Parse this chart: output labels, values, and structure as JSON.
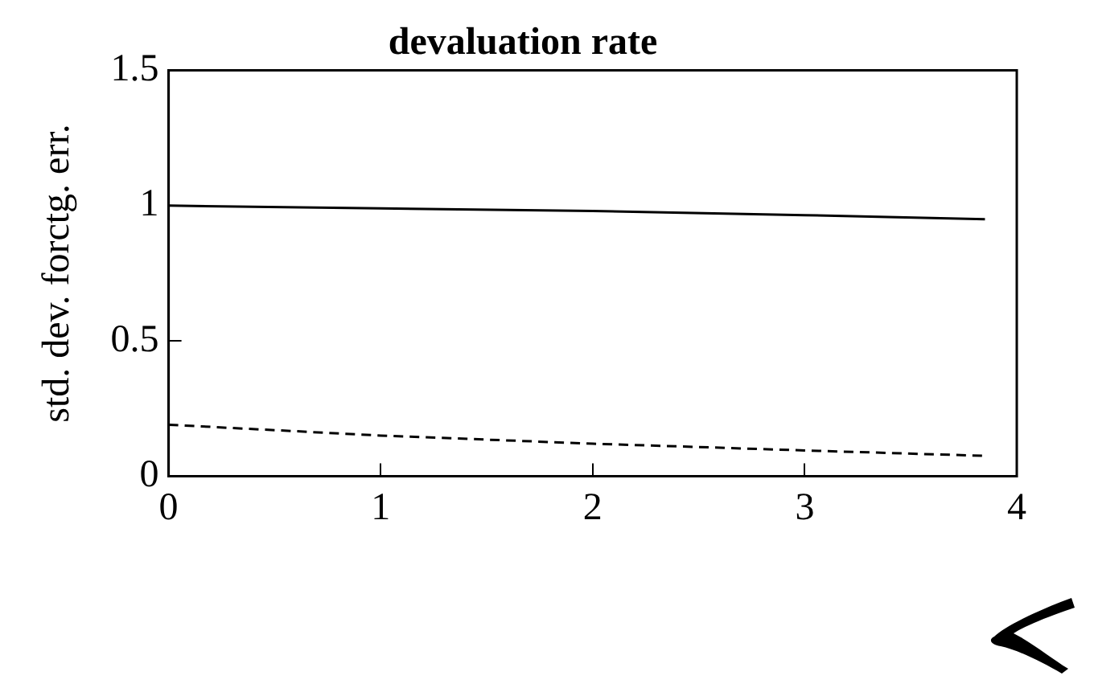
{
  "chart_data": {
    "type": "line",
    "title": "devaluation rate",
    "ylabel": "std. dev. forctg. err.",
    "series": [
      {
        "color": "#000000",
        "line_style": "solid",
        "x": [
          0,
          1,
          2,
          3,
          3.85
        ],
        "values": [
          1.0,
          0.99,
          0.98,
          0.965,
          0.95
        ]
      },
      {
        "color": "#000000",
        "line_style": "dashed",
        "x": [
          0,
          0.5,
          1,
          2,
          3,
          3.85
        ],
        "values": [
          0.19,
          0.17,
          0.15,
          0.12,
          0.095,
          0.075
        ]
      }
    ],
    "xlim": [
      0,
      4
    ],
    "xticks": [
      0,
      1,
      2,
      3,
      4
    ],
    "ylim": [
      0,
      1.5
    ],
    "yticks": [
      0,
      0.5,
      1,
      1.5
    ],
    "grid": false,
    "legend": false,
    "marker": "none"
  }
}
